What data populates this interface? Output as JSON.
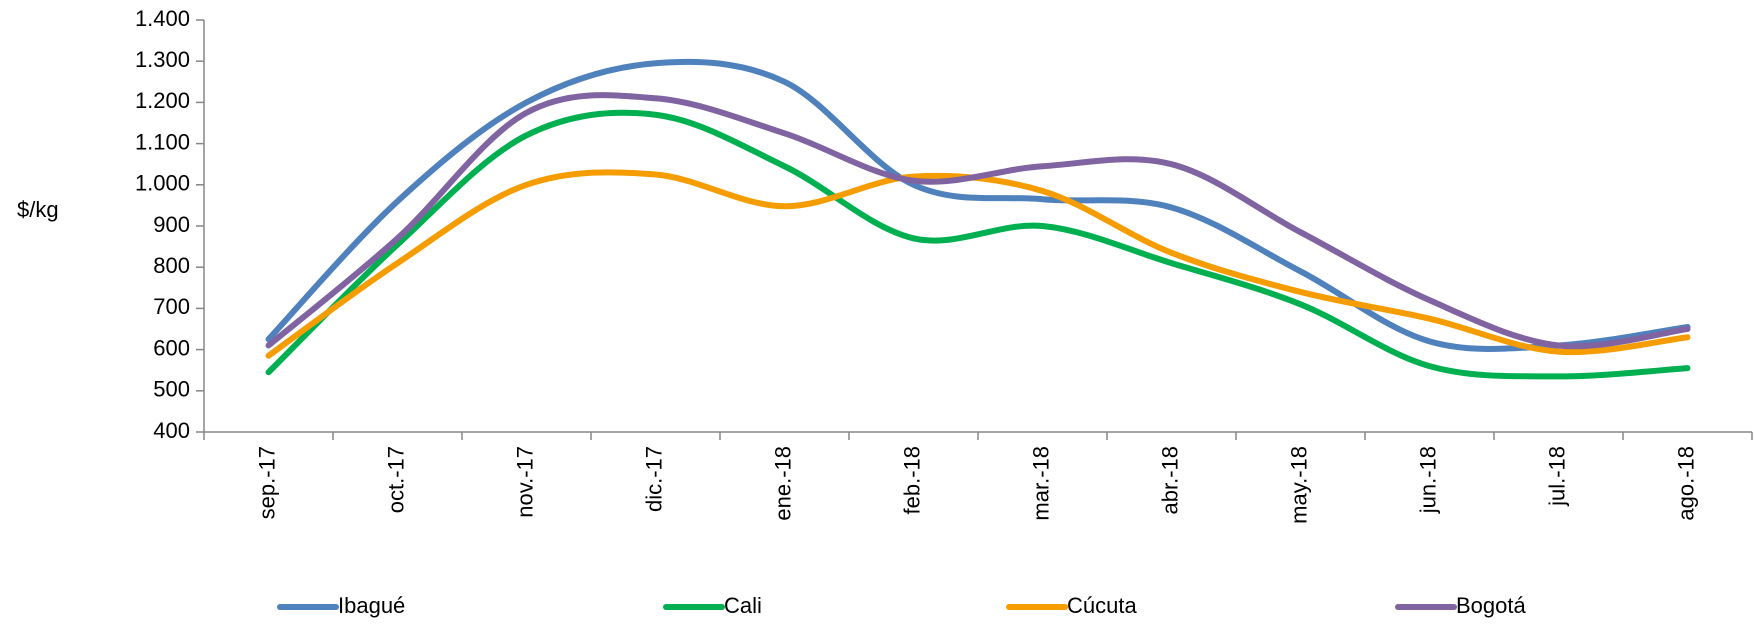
{
  "chart_data": {
    "type": "line",
    "y_label": "$/kg",
    "categories": [
      "sep.-17",
      "oct.-17",
      "nov.-17",
      "dic.-17",
      "ene.-18",
      "feb.-18",
      "mar.-18",
      "abr.-18",
      "may.-18",
      "jun.-18",
      "jul.-18",
      "ago.-18"
    ],
    "series": [
      {
        "name": "Ibagué",
        "color": "#4f81bd",
        "values": [
          625,
          960,
          1200,
          1295,
          1250,
          1000,
          965,
          945,
          790,
          620,
          610,
          655
        ]
      },
      {
        "name": "Cali",
        "color": "#00b050",
        "values": [
          545,
          855,
          1120,
          1170,
          1045,
          870,
          900,
          810,
          710,
          560,
          535,
          555
        ]
      },
      {
        "name": "Cúcuta",
        "color": "#f59d00",
        "values": [
          585,
          810,
          1000,
          1025,
          948,
          1020,
          985,
          835,
          740,
          675,
          595,
          630
        ]
      },
      {
        "name": "Bogotá",
        "color": "#8064a2",
        "values": [
          610,
          870,
          1175,
          1210,
          1125,
          1010,
          1045,
          1050,
          885,
          720,
          610,
          650
        ]
      }
    ],
    "ylim": [
      400,
      1400
    ],
    "yticks": [
      400,
      500,
      600,
      700,
      800,
      900,
      {
        "value": 1000,
        "label": "1.000"
      },
      {
        "value": 1100,
        "label": "1.100"
      },
      {
        "value": 1200,
        "label": "1.200"
      },
      {
        "value": 1300,
        "label": "1.300"
      },
      {
        "value": 1400,
        "label": "1.400"
      }
    ],
    "smooth": true,
    "grid": false,
    "legend": "bottom"
  }
}
